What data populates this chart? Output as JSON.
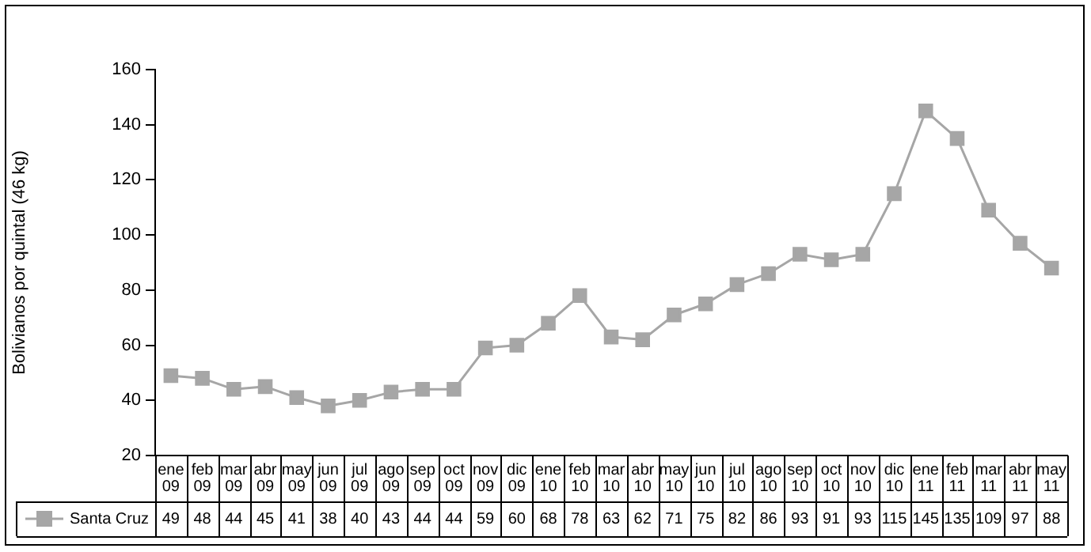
{
  "chart_data": {
    "type": "line",
    "ylabel": "Bolivianos por quintal (46 kg)",
    "categories": [
      "ene 09",
      "feb 09",
      "mar 09",
      "abr 09",
      "may 09",
      "jun 09",
      "jul 09",
      "ago 09",
      "sep 09",
      "oct 09",
      "nov 09",
      "dic 09",
      "ene 10",
      "feb 10",
      "mar 10",
      "abr 10",
      "may 10",
      "jun 10",
      "jul 10",
      "ago 10",
      "sep 10",
      "oct 10",
      "nov 10",
      "dic 10",
      "ene 11",
      "feb 11",
      "mar 11",
      "abr 11",
      "may 11"
    ],
    "series": [
      {
        "name": "Santa Cruz",
        "color": "#a6a6a6",
        "values": [
          49,
          48,
          44,
          45,
          41,
          38,
          40,
          43,
          44,
          44,
          59,
          60,
          68,
          78,
          63,
          62,
          71,
          75,
          82,
          86,
          93,
          91,
          93,
          115,
          145,
          135,
          109,
          97,
          88
        ]
      }
    ],
    "ylim": [
      20,
      160
    ],
    "yticks": [
      20,
      40,
      60,
      80,
      100,
      120,
      140,
      160
    ],
    "marker": "square",
    "line_style": "solid",
    "legend": "bottom left",
    "data_labels": true
  }
}
